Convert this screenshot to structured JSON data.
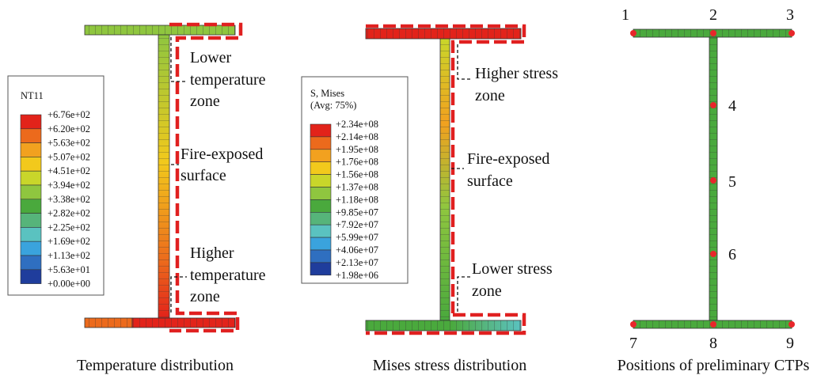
{
  "panels": [
    {
      "legend": {
        "title": [
          "NT11"
        ],
        "labels": [
          "+6.76e+02",
          "+6.20e+02",
          "+5.63e+02",
          "+5.07e+02",
          "+4.51e+02",
          "+3.94e+02",
          "+3.38e+02",
          "+2.82e+02",
          "+2.25e+02",
          "+1.69e+02",
          "+1.13e+02",
          "+5.63e+01",
          "+0.00e+00"
        ],
        "colors": [
          "#e2231a",
          "#ec6a1c",
          "#f2a11f",
          "#f2c91c",
          "#c9d62a",
          "#8fc63f",
          "#4aa93d",
          "#56b47a",
          "#5ac2c0",
          "#3aa3dd",
          "#2f6fc0",
          "#1f3d9c"
        ]
      },
      "annotations": [
        [
          "Lower",
          "temperature",
          "zone"
        ],
        [
          "Fire-exposed",
          "surface"
        ],
        [
          "Higher",
          "temperature",
          "zone"
        ]
      ],
      "caption": "Temperature distribution"
    },
    {
      "legend": {
        "title": [
          "S, Mises",
          "(Avg: 75%)"
        ],
        "labels": [
          "+2.34e+08",
          "+2.14e+08",
          "+1.95e+08",
          "+1.76e+08",
          "+1.56e+08",
          "+1.37e+08",
          "+1.18e+08",
          "+9.85e+07",
          "+7.92e+07",
          "+5.99e+07",
          "+4.06e+07",
          "+2.13e+07",
          "+1.98e+06"
        ],
        "colors": [
          "#e2231a",
          "#ec6a1c",
          "#f2a11f",
          "#f2c91c",
          "#c9d62a",
          "#8fc63f",
          "#4aa93d",
          "#56b47a",
          "#5ac2c0",
          "#3aa3dd",
          "#2f6fc0",
          "#1f3d9c"
        ]
      },
      "annotations": [
        [
          "Higher stress",
          "zone"
        ],
        [
          "Fire-exposed",
          "surface"
        ],
        [
          "Lower  stress",
          "zone"
        ]
      ],
      "caption": "Mises stress distribution"
    },
    {
      "points": [
        "1",
        "2",
        "3",
        "4",
        "5",
        "6",
        "7",
        "8",
        "9"
      ],
      "caption": "Positions of preliminary CTPs"
    }
  ]
}
